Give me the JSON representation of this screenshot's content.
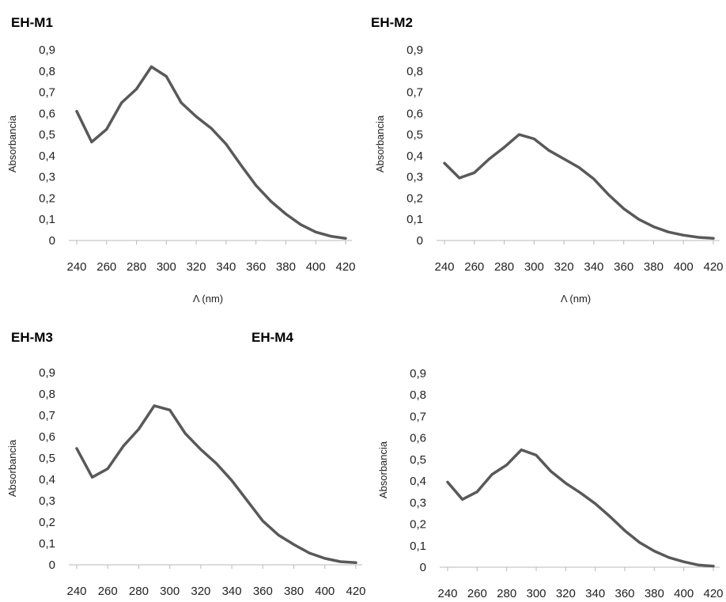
{
  "colors": {
    "series": "#595959",
    "axis": "#b8b8b8"
  },
  "chart_data": [
    {
      "type": "line",
      "title": "EH-M1",
      "xlabel": "Λ (nm)",
      "ylabel": "Absorbancia",
      "xlim": [
        240,
        420
      ],
      "ylim": [
        0,
        0.9
      ],
      "x_ticks": [
        "240",
        "260",
        "280",
        "300",
        "320",
        "340",
        "360",
        "380",
        "400",
        "420"
      ],
      "y_ticks": [
        "0",
        "0,1",
        "0,2",
        "0,3",
        "0,4",
        "0,5",
        "0,6",
        "0,7",
        "0,8",
        "0,9"
      ],
      "x": [
        240,
        250,
        260,
        270,
        280,
        290,
        300,
        310,
        320,
        330,
        340,
        350,
        360,
        370,
        380,
        390,
        400,
        410,
        420
      ],
      "series": [
        {
          "values": [
            0.61,
            0.465,
            0.525,
            0.65,
            0.715,
            0.82,
            0.775,
            0.65,
            0.585,
            0.53,
            0.455,
            0.355,
            0.26,
            0.185,
            0.125,
            0.075,
            0.04,
            0.02,
            0.01
          ]
        }
      ],
      "grid": false
    },
    {
      "type": "line",
      "title": "EH-M2",
      "xlabel": "Λ (nm)",
      "ylabel": "Absorbancia",
      "xlim": [
        240,
        420
      ],
      "ylim": [
        0,
        0.9
      ],
      "x_ticks": [
        "240",
        "260",
        "280",
        "300",
        "320",
        "340",
        "360",
        "380",
        "400",
        "420"
      ],
      "y_ticks": [
        "0",
        "0,1",
        "0,2",
        "0,3",
        "0,4",
        "0,5",
        "0,6",
        "0,7",
        "0,8",
        "0,9"
      ],
      "x": [
        240,
        250,
        260,
        270,
        280,
        290,
        300,
        310,
        320,
        330,
        340,
        350,
        360,
        370,
        380,
        390,
        400,
        410,
        420
      ],
      "series": [
        {
          "values": [
            0.365,
            0.295,
            0.32,
            0.385,
            0.44,
            0.5,
            0.48,
            0.425,
            0.385,
            0.345,
            0.29,
            0.215,
            0.15,
            0.1,
            0.065,
            0.04,
            0.025,
            0.015,
            0.01
          ]
        }
      ],
      "grid": false
    },
    {
      "type": "line",
      "title": "EH-M3",
      "xlabel": "",
      "ylabel": "Absorbancia",
      "xlim": [
        240,
        420
      ],
      "ylim": [
        0,
        0.9
      ],
      "x_ticks": [
        "240",
        "260",
        "280",
        "300",
        "320",
        "340",
        "360",
        "380",
        "400",
        "420"
      ],
      "y_ticks": [
        "0",
        "0,1",
        "0,2",
        "0,3",
        "0,4",
        "0,5",
        "0,6",
        "0,7",
        "0,8",
        "0,9"
      ],
      "x": [
        240,
        250,
        260,
        270,
        280,
        290,
        300,
        310,
        320,
        330,
        340,
        350,
        360,
        370,
        380,
        390,
        400,
        410,
        420
      ],
      "series": [
        {
          "values": [
            0.545,
            0.41,
            0.45,
            0.555,
            0.635,
            0.745,
            0.725,
            0.615,
            0.54,
            0.475,
            0.395,
            0.3,
            0.205,
            0.14,
            0.095,
            0.055,
            0.03,
            0.015,
            0.01
          ]
        }
      ],
      "grid": false
    },
    {
      "type": "line",
      "title": "EH-M4",
      "xlabel": "",
      "ylabel": "Absorbancia",
      "xlim": [
        240,
        420
      ],
      "ylim": [
        0,
        0.9
      ],
      "x_ticks": [
        "240",
        "260",
        "280",
        "300",
        "320",
        "340",
        "360",
        "380",
        "400",
        "420"
      ],
      "y_ticks": [
        "0",
        "0,1",
        "0,2",
        "0,3",
        "0,4",
        "0,5",
        "0,6",
        "0,7",
        "0,8",
        "0,9"
      ],
      "x": [
        240,
        250,
        260,
        270,
        280,
        290,
        300,
        310,
        320,
        330,
        340,
        350,
        360,
        370,
        380,
        390,
        400,
        410,
        420
      ],
      "series": [
        {
          "values": [
            0.395,
            0.315,
            0.35,
            0.43,
            0.475,
            0.545,
            0.52,
            0.445,
            0.39,
            0.345,
            0.295,
            0.235,
            0.17,
            0.115,
            0.075,
            0.045,
            0.025,
            0.01,
            0.005
          ]
        }
      ],
      "grid": false
    }
  ]
}
